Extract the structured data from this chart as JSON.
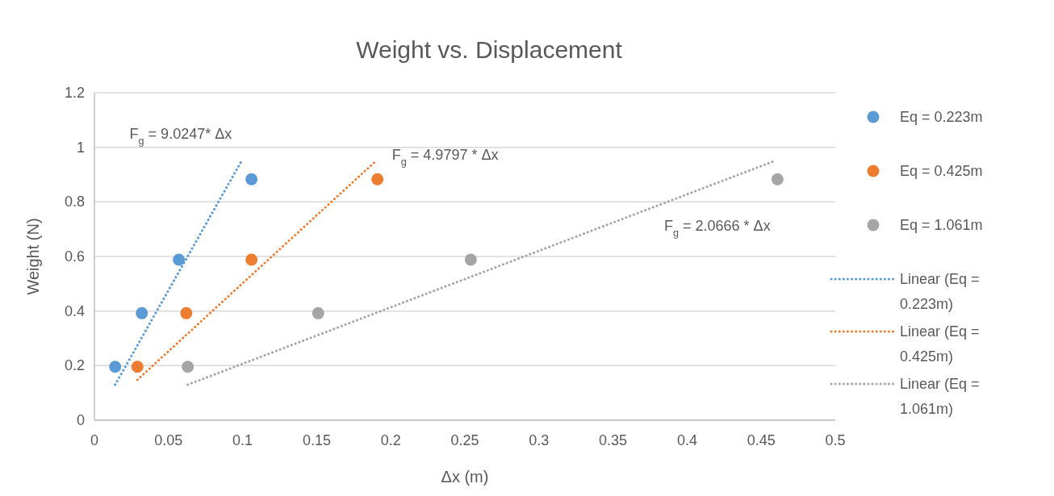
{
  "chart_data": {
    "type": "scatter",
    "title": "Weight vs. Displacement",
    "xlabel": "Δx (m)",
    "ylabel": "Weight (N)",
    "xlim": [
      0,
      0.5
    ],
    "xticks": [
      0,
      0.05,
      0.1,
      0.15,
      0.2,
      0.25,
      0.3,
      0.35,
      0.4,
      0.45,
      0.5
    ],
    "ylim": [
      0,
      1.2
    ],
    "yticks": [
      0,
      0.2,
      0.4,
      0.6,
      0.8,
      1,
      1.2
    ],
    "grid": "y",
    "legend": "right",
    "marker": "circle",
    "series": [
      {
        "name": "Eq = 0.223m",
        "color": "#5b9bd5",
        "x": [
          0.014,
          0.032,
          0.057,
          0.106
        ],
        "values": [
          0.196,
          0.392,
          0.588,
          0.883
        ]
      },
      {
        "name": "Eq = 0.425m",
        "color": "#ed7d31",
        "x": [
          0.029,
          0.062,
          0.106,
          0.191
        ],
        "values": [
          0.196,
          0.392,
          0.588,
          0.883
        ]
      },
      {
        "name": "Eq = 1.061m",
        "color": "#a5a5a5",
        "x": [
          0.063,
          0.151,
          0.254,
          0.461
        ],
        "values": [
          0.196,
          0.392,
          0.588,
          0.883
        ]
      },
      {
        "name": "Linear (Eq = 0.223m)",
        "type": "line",
        "line_style": "dotted",
        "marker": "none",
        "color": "#5b9bd5",
        "x": [
          0.014,
          0.1
        ],
        "values": [
          0.13,
          0.957
        ]
      },
      {
        "name": "Linear (Eq = 0.425m)",
        "type": "line",
        "line_style": "dotted",
        "marker": "none",
        "color": "#ed7d31",
        "x": [
          0.029,
          0.19
        ],
        "values": [
          0.148,
          0.95
        ]
      },
      {
        "name": "Linear (Eq = 1.061m)",
        "type": "line",
        "line_style": "dotted",
        "marker": "none",
        "color": "#a5a5a5",
        "x": [
          0.063,
          0.46
        ],
        "values": [
          0.13,
          0.952
        ]
      }
    ],
    "annotations": [
      {
        "text": "F$_{g}$ = 9.0247* Δx",
        "x": 0.1,
        "y": 0.957
      },
      {
        "text": "F$_{g}$ = 4.9797 * Δx",
        "x": 0.19,
        "y": 0.95
      },
      {
        "text": "F$_{g}$ = 2.0666 * Δx",
        "x": 0.39,
        "y": 0.807
      }
    ]
  }
}
